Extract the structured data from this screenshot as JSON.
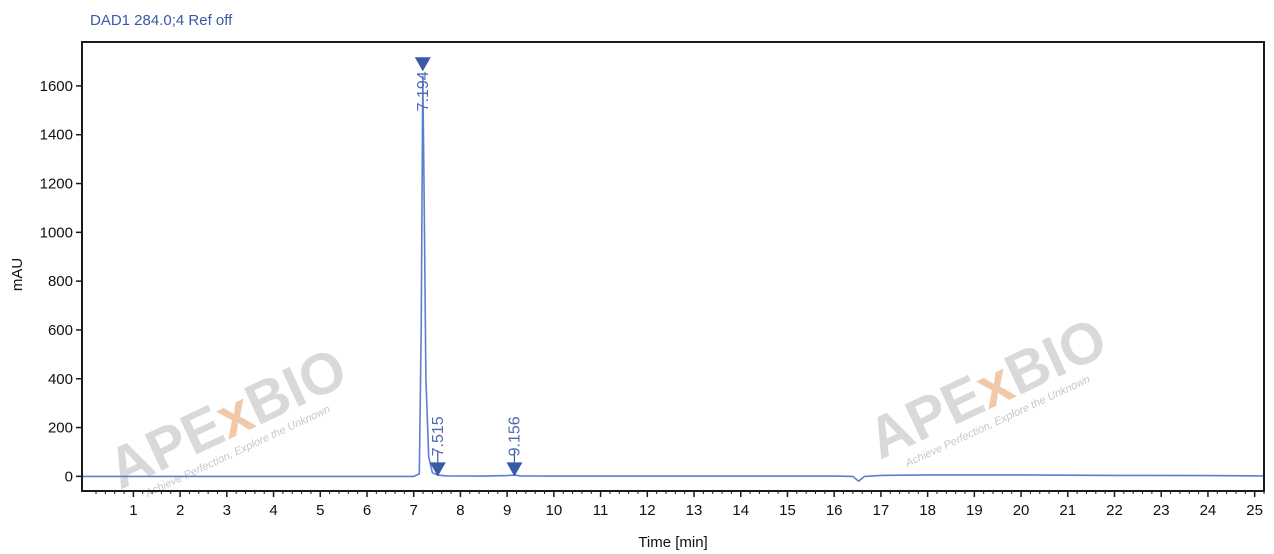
{
  "chart_data": {
    "type": "line",
    "title": "DAD1 284.0;4 Ref off",
    "xlabel": "Time [min]",
    "ylabel": "mAU",
    "xlim": [
      -0.1,
      25.2
    ],
    "ylim": [
      -60,
      1780
    ],
    "x_ticks": [
      1,
      2,
      3,
      4,
      5,
      6,
      7,
      8,
      9,
      10,
      11,
      12,
      13,
      14,
      15,
      16,
      17,
      18,
      19,
      20,
      21,
      22,
      23,
      24,
      25
    ],
    "y_ticks": [
      0,
      200,
      400,
      600,
      800,
      1000,
      1200,
      1400,
      1600
    ],
    "grid": false,
    "series": [
      {
        "x": [
          -0.1,
          1.5,
          3.0,
          5.0,
          6.5,
          7.0,
          7.12,
          7.16,
          7.194,
          7.22,
          7.26,
          7.32,
          7.4,
          7.515,
          7.7,
          8.5,
          9.0,
          9.156,
          9.3,
          10.0,
          12.0,
          14.0,
          16.0,
          16.4,
          16.52,
          16.65,
          17.0,
          18.0,
          20.0,
          22.0,
          24.0,
          25.2
        ],
        "y": [
          0,
          0,
          0,
          0,
          0,
          0,
          10,
          600,
          1640,
          1200,
          400,
          80,
          15,
          5,
          2,
          1,
          3,
          5,
          2,
          1,
          1,
          1,
          1,
          0,
          -20,
          0,
          4,
          6,
          6,
          4,
          3,
          2
        ]
      }
    ],
    "annotations": [
      {
        "label": "7.194",
        "x": 7.194,
        "y": 1660
      },
      {
        "label": "7.515",
        "x": 7.515,
        "y": 0
      },
      {
        "label": "9.156",
        "x": 9.156,
        "y": 0
      }
    ]
  },
  "watermark": {
    "brand_prefix": "APE",
    "brand_x": "x",
    "brand_suffix": "BIO",
    "tagline": "Achieve Perfection, Explore the Unknown"
  },
  "colors": {
    "line": "#5b7fd0",
    "marker": "#3a5aa8",
    "frame": "#1a1a1a",
    "title": "#3a5aa8"
  }
}
